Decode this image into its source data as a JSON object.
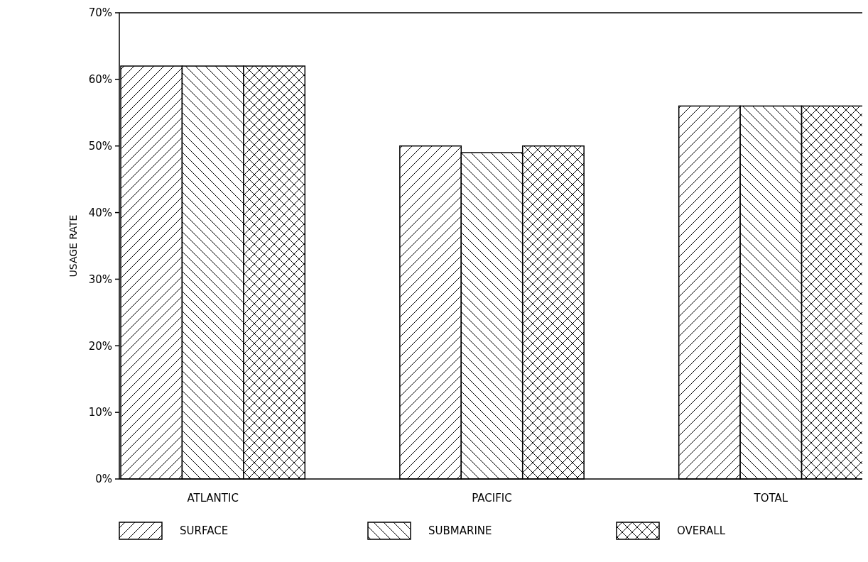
{
  "chart_data": {
    "type": "bar",
    "ylabel": "USAGE RATE",
    "categories": [
      "ATLANTIC",
      "PACIFIC",
      "TOTAL"
    ],
    "series": [
      {
        "name": "SURFACE",
        "color": "#000000",
        "values": [
          62,
          50,
          56
        ]
      },
      {
        "name": "SUBMARINE",
        "color": "#000000",
        "values": [
          62,
          49,
          56
        ]
      },
      {
        "name": "OVERALL",
        "color": "#000000",
        "values": [
          62,
          50,
          56
        ]
      }
    ],
    "ylim": [
      0,
      70
    ],
    "yticks": [
      {
        "value": 0,
        "label": "0%"
      },
      {
        "value": 10,
        "label": "10%"
      },
      {
        "value": 20,
        "label": "20%"
      },
      {
        "value": 30,
        "label": "30%"
      },
      {
        "value": 40,
        "label": "40%"
      },
      {
        "value": 50,
        "label": "50%"
      },
      {
        "value": 60,
        "label": "60%"
      },
      {
        "value": 70,
        "label": "70%"
      }
    ],
    "grid": false,
    "legend": "bottom"
  }
}
